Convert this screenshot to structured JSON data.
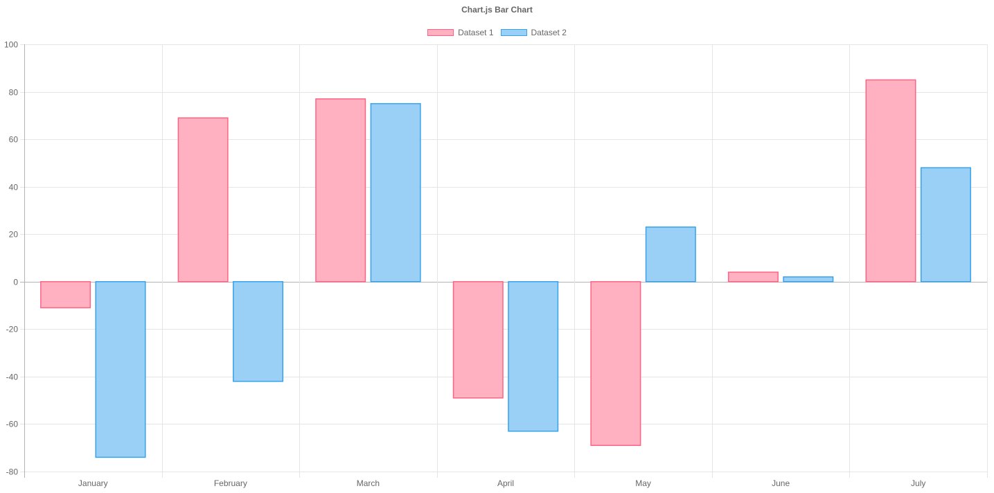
{
  "colors": {
    "dataset1_fill": "#ffb1c1",
    "dataset1_border": "#ff6384",
    "dataset2_fill": "#9ad0f5",
    "dataset2_border": "#36a2eb",
    "grid": "#e5e5e5",
    "zero_line": "#b3b3b3",
    "text": "#666666"
  },
  "chart_data": {
    "type": "bar",
    "title": "Chart.js Bar Chart",
    "categories": [
      "January",
      "February",
      "March",
      "April",
      "May",
      "June",
      "July"
    ],
    "series": [
      {
        "name": "Dataset 1",
        "values": [
          -11,
          69,
          77,
          -49,
          -69,
          4,
          85
        ]
      },
      {
        "name": "Dataset 2",
        "values": [
          -74,
          -42,
          75,
          -63,
          23,
          2,
          48
        ]
      }
    ],
    "ylim": [
      -80,
      100
    ],
    "yticks": [
      100,
      80,
      60,
      40,
      20,
      0,
      -20,
      -40,
      -60,
      -80
    ],
    "xlabel": "",
    "ylabel": "",
    "grid": true,
    "legend_position": "top"
  }
}
